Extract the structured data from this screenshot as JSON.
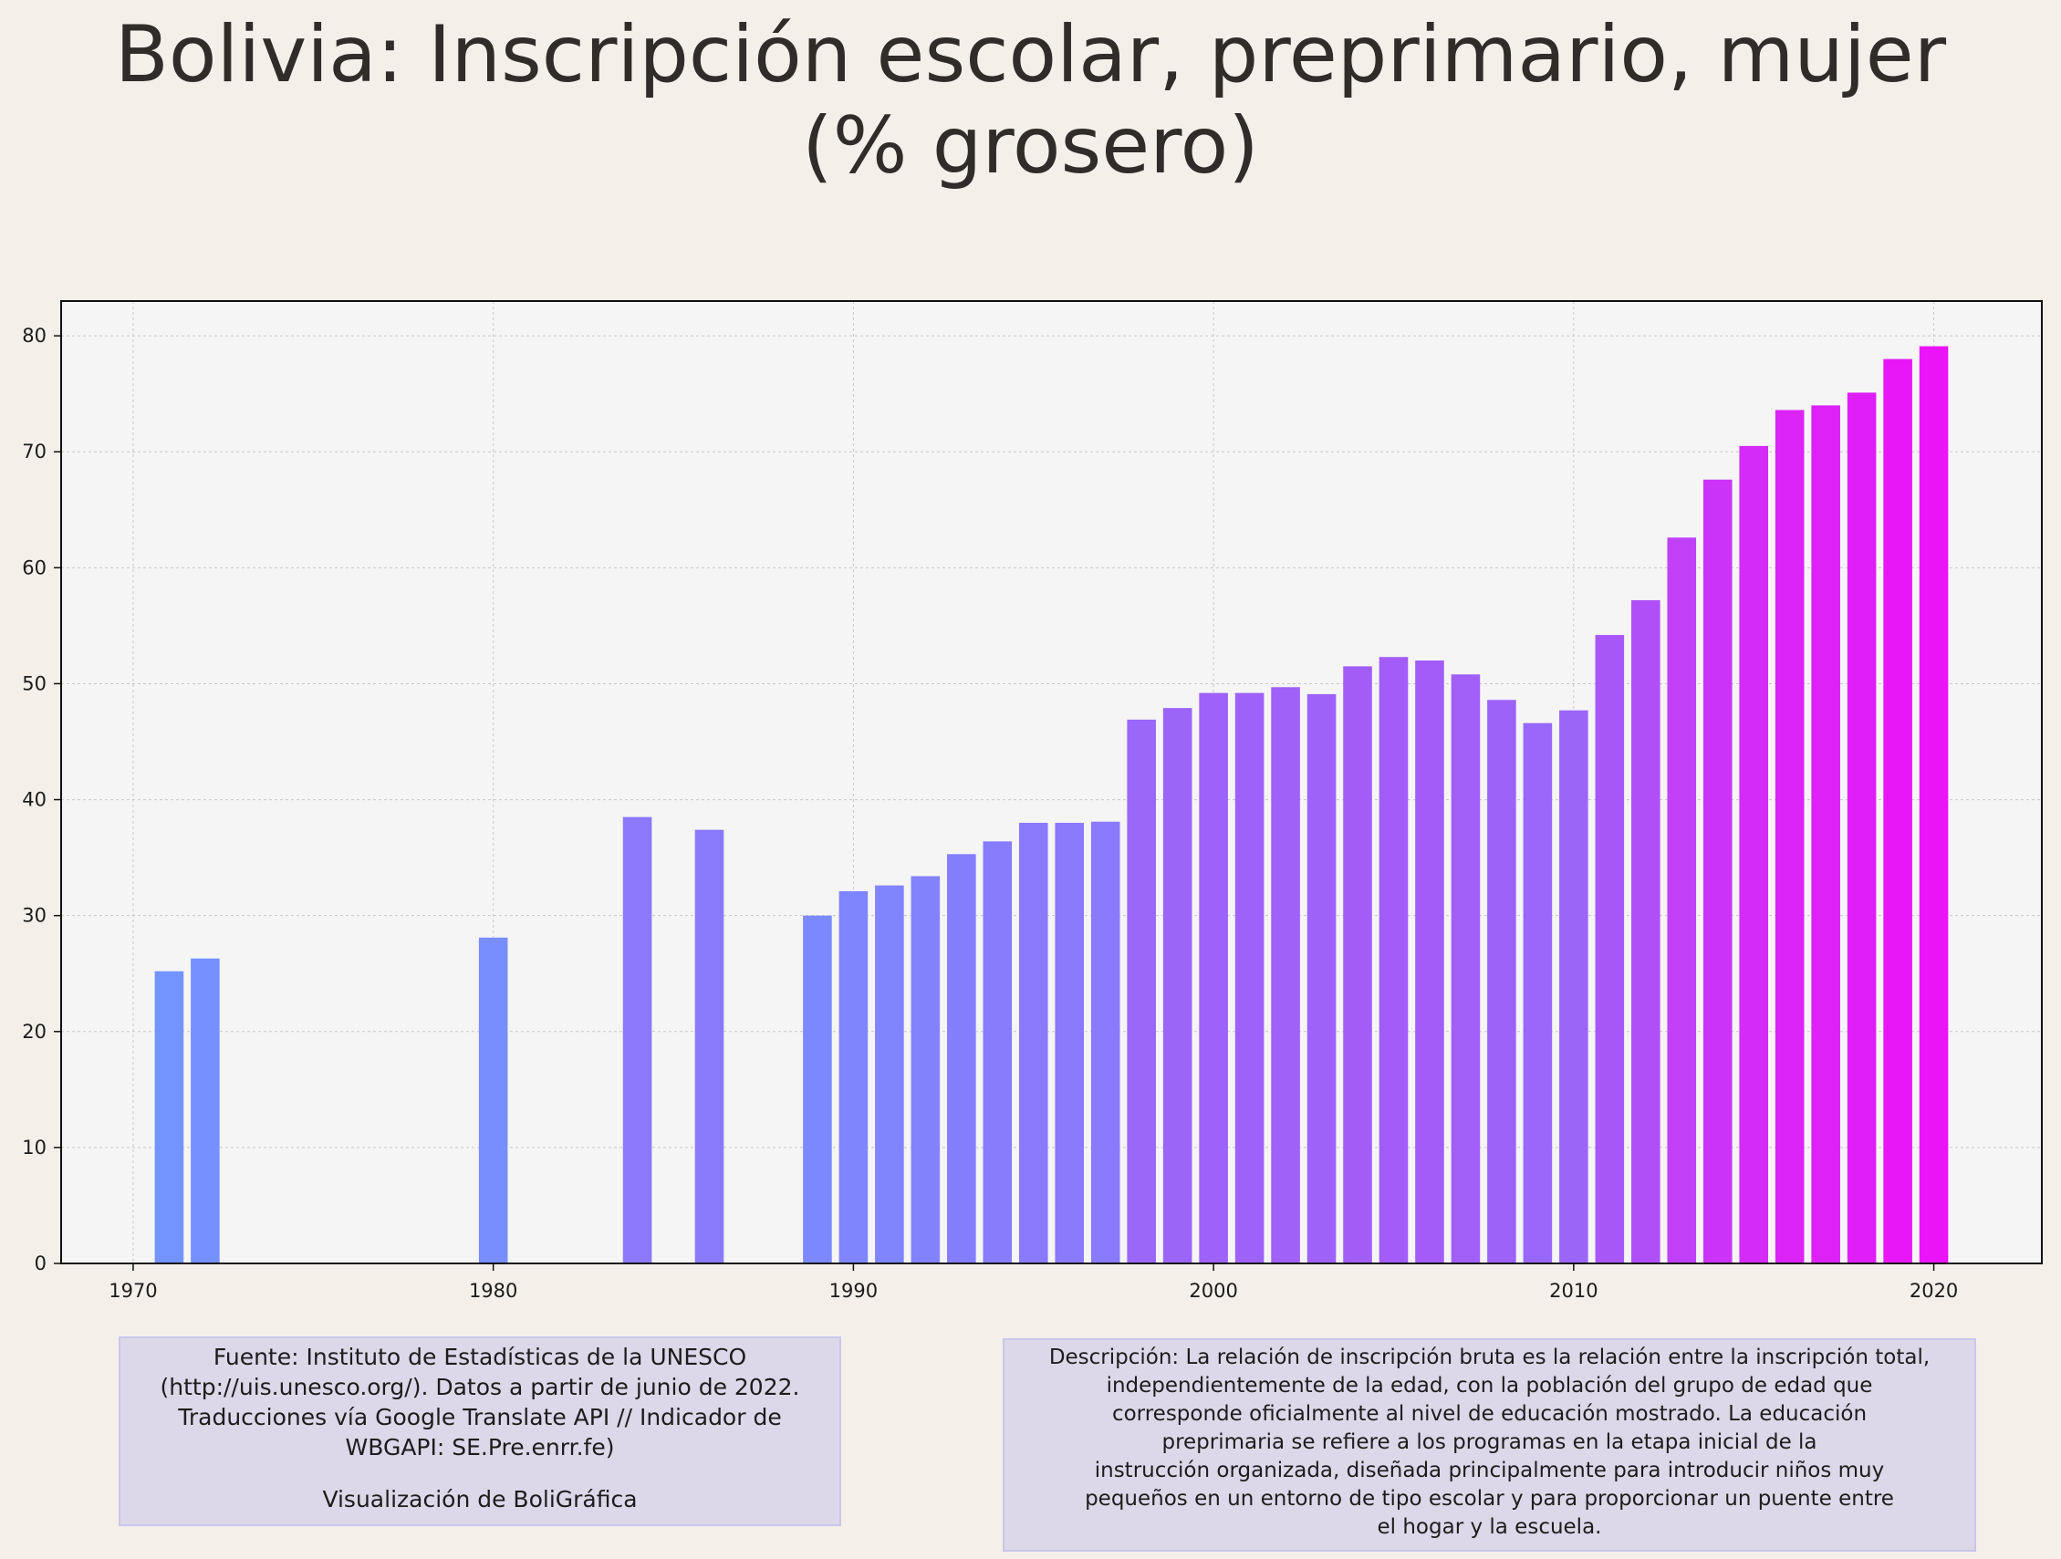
{
  "header": {
    "title_line1": "Bolivia:  Inscripción escolar, preprimario, mujer",
    "title_line2": "(% grosero)"
  },
  "colors": {
    "background": "#f4f0e9",
    "plot_background": "#f5f5f5",
    "bar_start": "#7393ff",
    "bar_mid": "#a35cf7",
    "bar_end": "#eb14f8",
    "grid": "#c8c8c8",
    "info_box": "#dcd8e9"
  },
  "chart_data": {
    "type": "bar",
    "title": "Bolivia:  Inscripción escolar, preprimario, mujer (% grosero)",
    "xlabel": "",
    "ylabel": "",
    "x": [
      1971,
      1972,
      1980,
      1984,
      1986,
      1989,
      1990,
      1991,
      1992,
      1993,
      1994,
      1995,
      1996,
      1997,
      1998,
      1999,
      2000,
      2001,
      2002,
      2003,
      2004,
      2005,
      2006,
      2007,
      2008,
      2009,
      2010,
      2011,
      2012,
      2013,
      2014,
      2015,
      2016,
      2017,
      2018,
      2019,
      2020
    ],
    "values": [
      25.2,
      26.3,
      28.1,
      38.5,
      37.4,
      30.0,
      32.1,
      32.6,
      33.4,
      35.3,
      36.4,
      38.0,
      38.0,
      38.1,
      46.9,
      47.9,
      49.2,
      49.2,
      49.7,
      49.1,
      51.5,
      52.3,
      52.0,
      50.8,
      48.6,
      46.6,
      47.7,
      54.2,
      57.2,
      62.6,
      67.6,
      70.5,
      73.6,
      74.0,
      75.1,
      78.0,
      79.1
    ],
    "xlim": [
      1968,
      2023
    ],
    "ylim": [
      0,
      83
    ],
    "x_ticks": [
      1970,
      1980,
      1990,
      2000,
      2010,
      2020
    ],
    "y_ticks": [
      0,
      10,
      20,
      30,
      40,
      50,
      60,
      70,
      80
    ],
    "grid": true,
    "legend": "none"
  },
  "footer": {
    "source_lines": [
      "Fuente: Instituto de Estadísticas de la UNESCO",
      "(http://uis.unesco.org/). Datos a partir de junio de 2022.",
      "Traducciones vía Google Translate API // Indicador de",
      "WBGAPI: SE.Pre.enrr.fe)"
    ],
    "credit": "Visualización de BoliGráfica",
    "description_lines": [
      "Descripción: La relación de inscripción bruta es la relación entre la inscripción total,",
      "independientemente de la edad, con la población del grupo de edad que",
      "corresponde oficialmente al nivel de educación mostrado. La educación",
      "preprimaria se refiere a los programas en la etapa inicial de la",
      "instrucción organizada, diseñada principalmente para introducir niños muy",
      "pequeños en un entorno de tipo escolar y para proporcionar un puente entre",
      "el hogar y la escuela."
    ]
  }
}
